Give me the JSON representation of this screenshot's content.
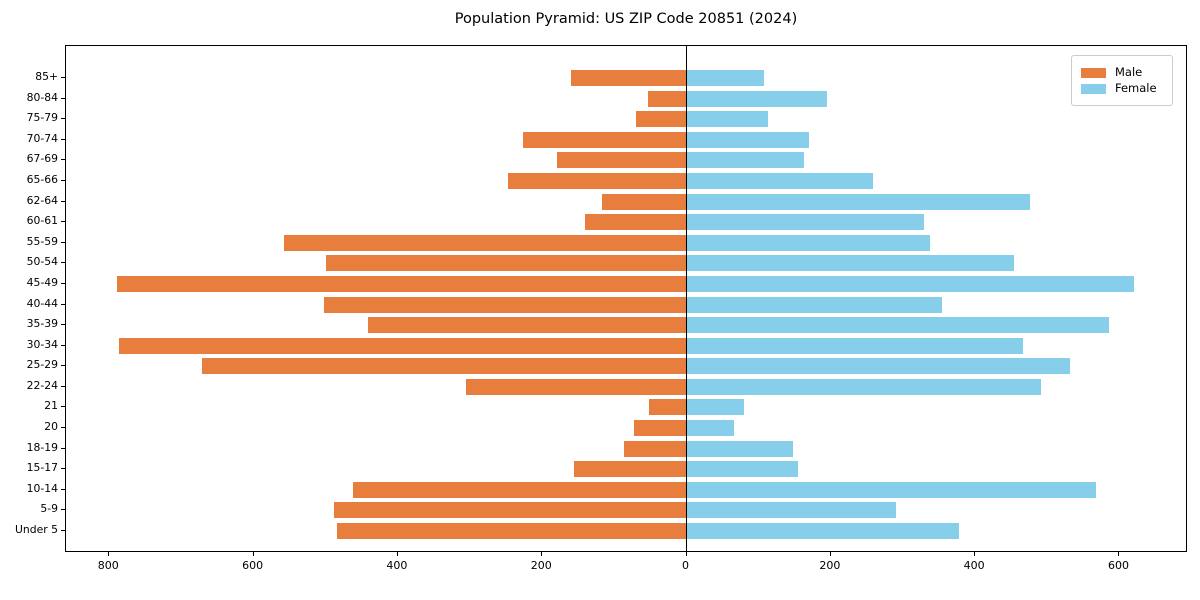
{
  "title": "Population Pyramid: US ZIP Code 20851 (2024)",
  "legend": {
    "items": [
      {
        "label": "Male",
        "color": "#e87e3e"
      },
      {
        "label": "Female",
        "color": "#87ceeb"
      }
    ]
  },
  "colors": {
    "male": "#e87e3e",
    "female": "#87ceeb",
    "axis": "#000000",
    "background": "#ffffff"
  },
  "chart_data": {
    "type": "bar",
    "variant": "population-pyramid",
    "title": "Population Pyramid: US ZIP Code 20851 (2024)",
    "xlabel": "",
    "ylabel": "",
    "grid": false,
    "legend_position": "upper right",
    "xlim": [
      -860,
      695
    ],
    "categories": [
      "85+",
      "80-84",
      "75-79",
      "70-74",
      "67-69",
      "65-66",
      "62-64",
      "60-61",
      "55-59",
      "50-54",
      "45-49",
      "40-44",
      "35-39",
      "30-34",
      "25-29",
      "22-24",
      "21",
      "20",
      "18-19",
      "15-17",
      "10-14",
      "5-9",
      "Under 5"
    ],
    "series": [
      {
        "name": "Male",
        "side": "left",
        "color": "#e87e3e",
        "values": [
          160,
          54,
          70,
          227,
          179,
          247,
          117,
          141,
          558,
          500,
          789,
          503,
          441,
          787,
          672,
          306,
          52,
          73,
          86,
          156,
          462,
          488,
          485
        ]
      },
      {
        "name": "Female",
        "side": "right",
        "color": "#87ceeb",
        "values": [
          108,
          195,
          113,
          170,
          163,
          258,
          476,
          329,
          337,
          454,
          620,
          354,
          585,
          466,
          532,
          491,
          80,
          66,
          147,
          155,
          568,
          290,
          377
        ]
      }
    ],
    "x_ticks": [
      {
        "value": -800,
        "label": "800"
      },
      {
        "value": -600,
        "label": "600"
      },
      {
        "value": -400,
        "label": "400"
      },
      {
        "value": -200,
        "label": "200"
      },
      {
        "value": 0,
        "label": "0"
      },
      {
        "value": 200,
        "label": "200"
      },
      {
        "value": 400,
        "label": "400"
      },
      {
        "value": 600,
        "label": "600"
      }
    ]
  }
}
